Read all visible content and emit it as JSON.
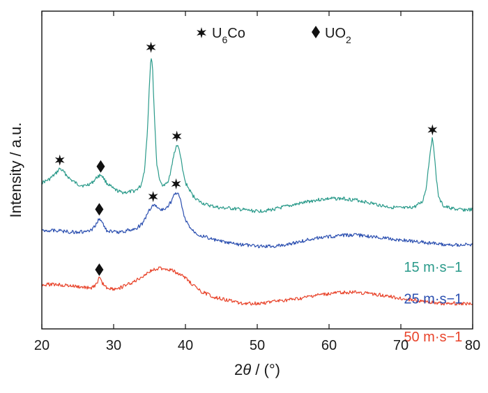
{
  "chart_data": {
    "type": "line",
    "xlabel": "2θ / (°)",
    "ylabel": "Intensity / a.u.",
    "xlim": [
      20,
      80
    ],
    "xticks": [
      20,
      30,
      40,
      50,
      60,
      70,
      80
    ],
    "ylim": [
      0,
      100
    ],
    "y_ticks_shown": false,
    "grid": false,
    "legend": {
      "placement": "top-center",
      "entries": [
        {
          "marker": "star",
          "label": "U6Co"
        },
        {
          "marker": "diamond",
          "label": "UO2"
        }
      ]
    },
    "series": [
      {
        "name": "15 m·s−1",
        "color": "#2a9a8a",
        "label_at": [
          74.5,
          18
        ],
        "x": [
          20,
          21,
          22,
          22.5,
          23,
          24,
          25,
          26,
          27,
          27.8,
          28.3,
          29,
          30,
          31,
          32,
          33,
          33.8,
          34.3,
          34.7,
          35.0,
          35.2,
          35.4,
          35.7,
          36.0,
          36.5,
          37,
          37.5,
          38,
          38.4,
          38.8,
          39.2,
          39.6,
          40,
          40.5,
          41,
          42,
          43,
          44,
          45,
          46,
          48,
          50,
          52,
          54,
          56,
          58,
          60,
          62,
          64,
          66,
          68,
          70,
          71,
          72,
          73,
          73.5,
          73.9,
          74.2,
          74.4,
          74.6,
          74.9,
          75.3,
          76,
          77,
          78,
          79,
          80
        ],
        "y": [
          46,
          47,
          49,
          50.5,
          49.5,
          47,
          45.5,
          45,
          46,
          48,
          48.5,
          46,
          44,
          43,
          43,
          43.5,
          45,
          50,
          62,
          78,
          86,
          83,
          66,
          52,
          46,
          45,
          46,
          50,
          55,
          58,
          56,
          50,
          46,
          44,
          42,
          40,
          39,
          38.5,
          38,
          38,
          37.5,
          37,
          37.5,
          38.5,
          39.5,
          40.5,
          41,
          41,
          40.5,
          39.5,
          38.5,
          38,
          38,
          38.5,
          40,
          44,
          52,
          58,
          60,
          57,
          48,
          41,
          38.5,
          38,
          37.5,
          37.5,
          37.5
        ],
        "peaks": [
          {
            "x": 22.5,
            "y": 50.5,
            "marker": "star"
          },
          {
            "x": 28.2,
            "y": 48.5,
            "marker": "diamond"
          },
          {
            "x": 35.2,
            "y": 86,
            "marker": "star"
          },
          {
            "x": 38.8,
            "y": 58,
            "marker": "star"
          },
          {
            "x": 74.4,
            "y": 60,
            "marker": "star"
          }
        ]
      },
      {
        "name": "25 m·s−1",
        "color": "#2b4fb0",
        "label_at": [
          74.5,
          8
        ],
        "x": [
          20,
          22,
          24,
          25,
          26,
          27,
          27.6,
          28.0,
          28.4,
          29,
          30,
          31,
          32,
          33,
          34,
          35,
          35.5,
          36,
          36.5,
          37,
          37.5,
          38,
          38.4,
          38.8,
          39.2,
          39.6,
          40,
          41,
          42,
          44,
          46,
          48,
          50,
          52,
          54,
          56,
          58,
          60,
          62,
          64,
          66,
          68,
          70,
          72,
          74,
          76,
          78,
          80
        ],
        "y": [
          31,
          31,
          30.5,
          30.5,
          30.5,
          31,
          33,
          35,
          33.5,
          31,
          30.5,
          30.5,
          31,
          31.5,
          33,
          37.5,
          39,
          38.5,
          37.5,
          37.5,
          38.5,
          40,
          42,
          43,
          41.5,
          37.5,
          34,
          31,
          29.5,
          28,
          27,
          26.5,
          26,
          26,
          26.5,
          27.5,
          28.5,
          29,
          29.5,
          29.5,
          29,
          28.5,
          28,
          27.5,
          27,
          26.5,
          26.5,
          26.5
        ],
        "peaks": [
          {
            "x": 28.0,
            "y": 35,
            "marker": "diamond"
          },
          {
            "x": 35.5,
            "y": 39,
            "marker": "star"
          },
          {
            "x": 38.7,
            "y": 43,
            "marker": "star"
          }
        ]
      },
      {
        "name": "50 m·s−1",
        "color": "#e8432a",
        "label_at": [
          74.5,
          -4
        ],
        "x": [
          20,
          22,
          24,
          26,
          27,
          27.6,
          28.0,
          28.4,
          29,
          30,
          31,
          32,
          33,
          34,
          35,
          36,
          37,
          38,
          39,
          40,
          41,
          42,
          44,
          46,
          48,
          50,
          52,
          54,
          56,
          58,
          60,
          62,
          64,
          66,
          68,
          70,
          72,
          74,
          76,
          78,
          80
        ],
        "y": [
          14,
          14,
          13.5,
          13,
          13,
          14,
          16,
          14.5,
          13,
          12.5,
          13,
          14,
          15,
          16.5,
          18,
          19,
          19,
          18.5,
          17.5,
          16,
          14,
          12,
          10,
          9,
          8,
          8,
          8.5,
          9,
          9.5,
          10.5,
          11,
          11.5,
          11.5,
          11,
          10.5,
          9.5,
          9,
          8.5,
          8,
          8,
          8
        ],
        "peaks": [
          {
            "x": 28.0,
            "y": 16,
            "marker": "diamond"
          }
        ]
      }
    ]
  }
}
